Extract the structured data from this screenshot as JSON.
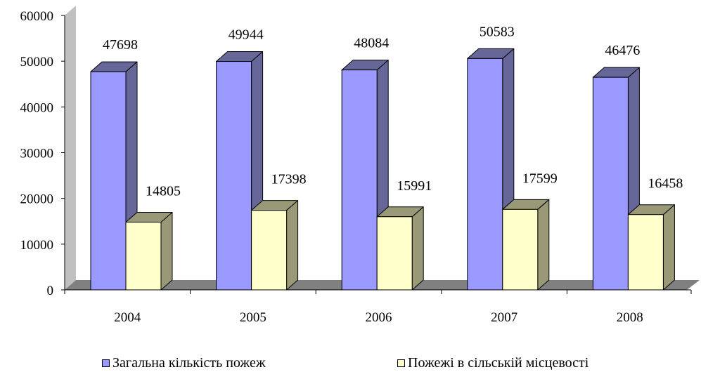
{
  "chart_data": {
    "type": "bar",
    "style": "3d-clustered-column",
    "categories": [
      "2004",
      "2005",
      "2006",
      "2007",
      "2008"
    ],
    "series": [
      {
        "name": "Загальна кількість пожеж",
        "values": [
          47698,
          49944,
          48084,
          50583,
          46476
        ],
        "color": "#9999ff",
        "side_color": "#666699"
      },
      {
        "name": "Пожежі в сільській місцевості",
        "values": [
          14805,
          17398,
          15991,
          17599,
          16458
        ],
        "color": "#ffffcc",
        "side_color": "#999977"
      }
    ],
    "ylim": [
      0,
      60000
    ],
    "yticks": [
      "0",
      "10000",
      "20000",
      "30000",
      "40000",
      "50000",
      "60000"
    ],
    "data_labels": true,
    "grid": false,
    "legend_position": "bottom",
    "xlabel": "",
    "ylabel": "",
    "title": ""
  }
}
